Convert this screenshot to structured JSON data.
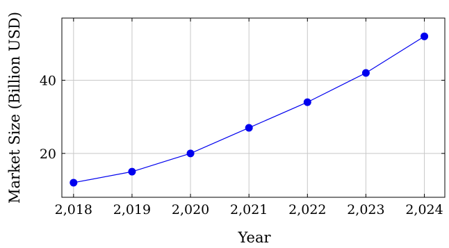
{
  "chart_data": {
    "type": "line",
    "title": "",
    "xlabel": "Year",
    "ylabel": "Market Size (Billion USD)",
    "x": [
      2018,
      2019,
      2020,
      2021,
      2022,
      2023,
      2024
    ],
    "x_tick_labels": [
      "2,018",
      "2,019",
      "2,020",
      "2,021",
      "2,022",
      "2,023",
      "2,024"
    ],
    "y_ticks": [
      20,
      40
    ],
    "y_tick_labels": [
      "20",
      "40"
    ],
    "xlim": [
      2017.8,
      2024.35
    ],
    "ylim": [
      8,
      57
    ],
    "grid": true,
    "series": [
      {
        "values": [
          12,
          15,
          20,
          27,
          34,
          42,
          52
        ],
        "color": "#0000ee",
        "marker": "circle"
      }
    ]
  }
}
